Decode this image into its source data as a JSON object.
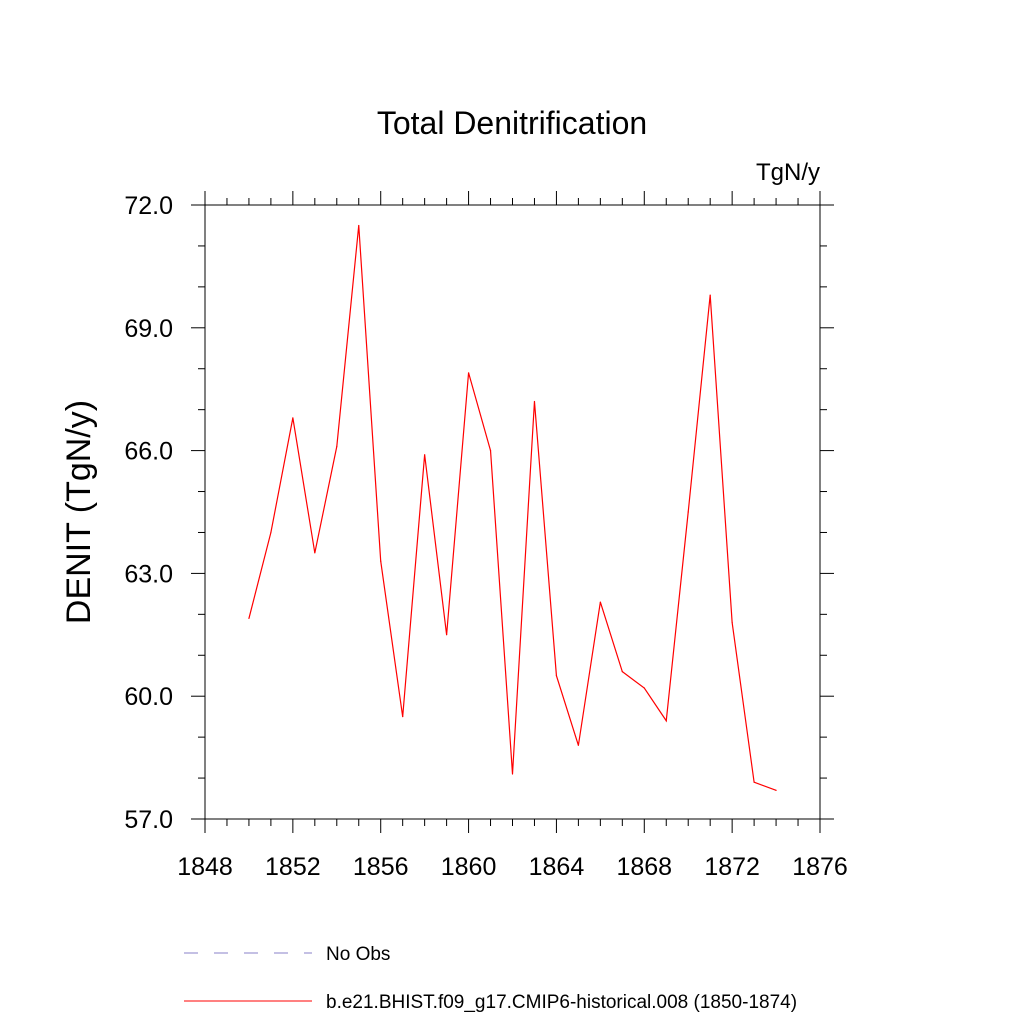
{
  "chart_data": {
    "type": "line",
    "title": "Total Denitrification",
    "units_label": "TgN/y",
    "ylabel": "DENIT  (TgN/y)",
    "xlabel": "",
    "xlim": [
      1848,
      1876
    ],
    "ylim": [
      57.0,
      72.0
    ],
    "x_ticks": [
      "1848",
      "1852",
      "1856",
      "1860",
      "1864",
      "1868",
      "1872",
      "1876"
    ],
    "y_ticks": [
      "57.0",
      "60.0",
      "63.0",
      "66.0",
      "69.0",
      "72.0"
    ],
    "series": [
      {
        "name": "b.e21.BHIST.f09_g17.CMIP6-historical.008 (1850-1874)",
        "color": "#ff0000",
        "style": "solid",
        "x": [
          1850,
          1851,
          1852,
          1853,
          1854,
          1855,
          1856,
          1857,
          1858,
          1859,
          1860,
          1861,
          1862,
          1863,
          1864,
          1865,
          1866,
          1867,
          1868,
          1869,
          1870,
          1871,
          1872,
          1873,
          1874
        ],
        "y": [
          61.9,
          64.0,
          66.8,
          63.5,
          66.1,
          71.5,
          63.3,
          59.5,
          65.9,
          61.5,
          67.9,
          66.0,
          58.1,
          67.2,
          60.5,
          58.8,
          62.3,
          60.6,
          60.2,
          59.4,
          64.5,
          69.8,
          61.8,
          57.9,
          57.7
        ]
      }
    ],
    "legend": [
      {
        "label": "No Obs",
        "color": "#8a80c8",
        "style": "dashed"
      },
      {
        "label": "b.e21.BHIST.f09_g17.CMIP6-historical.008 (1850-1874)",
        "color": "#ff0000",
        "style": "solid"
      }
    ],
    "grid": false,
    "legend_position": "bottom"
  }
}
